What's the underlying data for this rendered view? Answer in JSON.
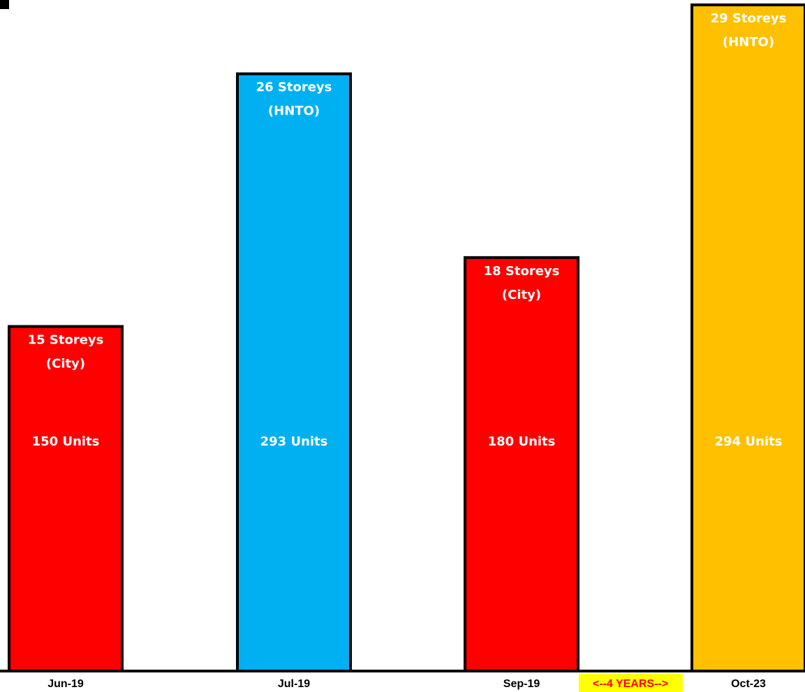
{
  "chart_data": {
    "type": "bar",
    "categories": [
      "Jun-19",
      "Jul-19",
      "Sep-19",
      "Oct-23"
    ],
    "values": [
      15,
      26,
      18,
      29
    ],
    "ylim": [
      0,
      29
    ],
    "grid": false,
    "legend": "none",
    "bars": [
      {
        "category": "Jun-19",
        "storeys": 15,
        "storeys_label": "15 Storeys",
        "source_label": "(City)",
        "units_label": "150 Units",
        "color": "#ff0000"
      },
      {
        "category": "Jul-19",
        "storeys": 26,
        "storeys_label": "26 Storeys",
        "source_label": "(HNTO)",
        "units_label": "293 Units",
        "color": "#00b0f0"
      },
      {
        "category": "Sep-19",
        "storeys": 18,
        "storeys_label": "18 Storeys",
        "source_label": "(City)",
        "units_label": "180 Units",
        "color": "#ff0000"
      },
      {
        "category": "Oct-23",
        "storeys": 29,
        "storeys_label": "29 Storeys",
        "source_label": "(HNTO)",
        "units_label": "294 Units",
        "color": "#ffc000"
      }
    ],
    "annotations": [
      {
        "text": "<--4 YEARS-->",
        "background": "#ffff00",
        "color": "#ff0000"
      }
    ]
  }
}
